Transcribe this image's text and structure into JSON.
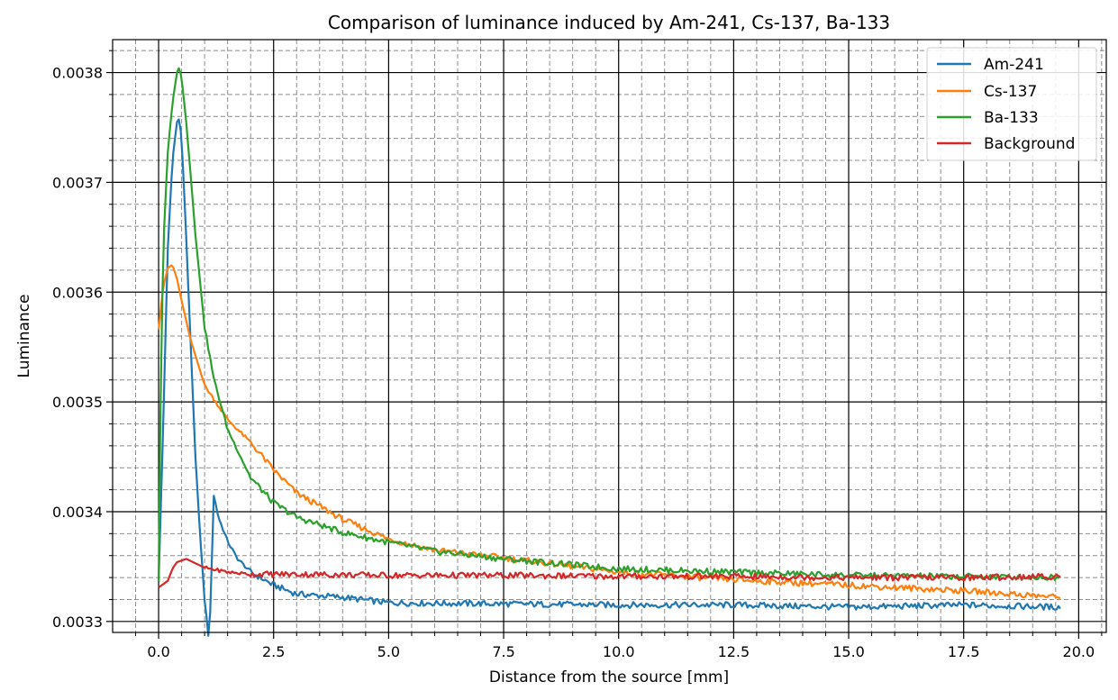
{
  "chart_data": {
    "type": "line",
    "title": "Comparison of luminance induced by Am-241, Cs-137, Ba-133",
    "xlabel": "Distance from the source [mm]",
    "ylabel": "Luminance",
    "xlim": [
      -1.0,
      20.6
    ],
    "ylim": [
      0.00329,
      0.00383
    ],
    "x_ticks": [
      0.0,
      2.5,
      5.0,
      7.5,
      10.0,
      12.5,
      15.0,
      17.5,
      20.0
    ],
    "x_tick_labels": [
      "0.0",
      "2.5",
      "5.0",
      "7.5",
      "10.0",
      "12.5",
      "15.0",
      "17.5",
      "20.0"
    ],
    "x_minor_step": 0.5,
    "y_ticks": [
      0.0033,
      0.0034,
      0.0035,
      0.0036,
      0.0037,
      0.0038
    ],
    "y_tick_labels": [
      "0.0033",
      "0.0034",
      "0.0035",
      "0.0036",
      "0.0037",
      "0.0038"
    ],
    "y_minor_step": 2e-05,
    "grid": true,
    "legend_position": "top-right",
    "series": [
      {
        "name": "Am-241",
        "color": "#1f77b4",
        "x": [
          0.0,
          0.1,
          0.2,
          0.3,
          0.4,
          0.45,
          0.5,
          0.6,
          0.7,
          0.8,
          0.9,
          1.0,
          1.1,
          1.2,
          1.3,
          1.5,
          1.7,
          2.0,
          2.5,
          3.0,
          4.0,
          5.0,
          7.5,
          10.0,
          12.5,
          15.0,
          17.5,
          19.6
        ],
        "values": [
          0.003336,
          0.00348,
          0.00364,
          0.00372,
          0.003755,
          0.003758,
          0.00374,
          0.00365,
          0.00355,
          0.00345,
          0.00338,
          0.00332,
          0.00328,
          0.003415,
          0.003395,
          0.003373,
          0.003358,
          0.003345,
          0.003333,
          0.003325,
          0.003322,
          0.003317,
          0.003316,
          0.003315,
          0.003315,
          0.003313,
          0.003315,
          0.003313
        ]
      },
      {
        "name": "Cs-137",
        "color": "#ff7f0e",
        "x": [
          0.0,
          0.1,
          0.2,
          0.3,
          0.4,
          0.5,
          0.7,
          1.0,
          1.5,
          2.0,
          2.5,
          3.0,
          4.0,
          5.0,
          6.0,
          7.5,
          10.0,
          12.5,
          15.0,
          17.5,
          19.6
        ],
        "values": [
          0.003566,
          0.003605,
          0.003622,
          0.003625,
          0.003612,
          0.003592,
          0.003556,
          0.003515,
          0.003484,
          0.003463,
          0.003438,
          0.003417,
          0.003393,
          0.003375,
          0.003365,
          0.003358,
          0.003345,
          0.003338,
          0.003333,
          0.003328,
          0.003322
        ]
      },
      {
        "name": "Ba-133",
        "color": "#2ca02c",
        "x": [
          0.0,
          0.05,
          0.1,
          0.2,
          0.3,
          0.4,
          0.45,
          0.5,
          0.6,
          0.7,
          0.8,
          1.0,
          1.2,
          1.5,
          2.0,
          2.5,
          3.0,
          4.0,
          5.0,
          6.0,
          7.5,
          10.0,
          12.5,
          15.0,
          17.5,
          19.6
        ],
        "values": [
          0.003336,
          0.003528,
          0.003641,
          0.003728,
          0.003772,
          0.0038,
          0.003805,
          0.003795,
          0.003755,
          0.003705,
          0.003652,
          0.003568,
          0.003521,
          0.003475,
          0.003431,
          0.003408,
          0.003395,
          0.003381,
          0.003372,
          0.003364,
          0.003357,
          0.003348,
          0.003345,
          0.003342,
          0.003341,
          0.00334
        ]
      },
      {
        "name": "Background",
        "color": "#d62728",
        "x": [
          0.0,
          0.2,
          0.3,
          0.4,
          0.6,
          0.8,
          1.0,
          1.5,
          2.0,
          3.0,
          5.0,
          7.5,
          10.0,
          12.5,
          15.0,
          17.5,
          19.6
        ],
        "values": [
          0.003331,
          0.003337,
          0.003348,
          0.003354,
          0.003357,
          0.003353,
          0.003349,
          0.003345,
          0.003343,
          0.003343,
          0.003342,
          0.003342,
          0.003341,
          0.003341,
          0.00334,
          0.00334,
          0.003341
        ]
      }
    ]
  }
}
